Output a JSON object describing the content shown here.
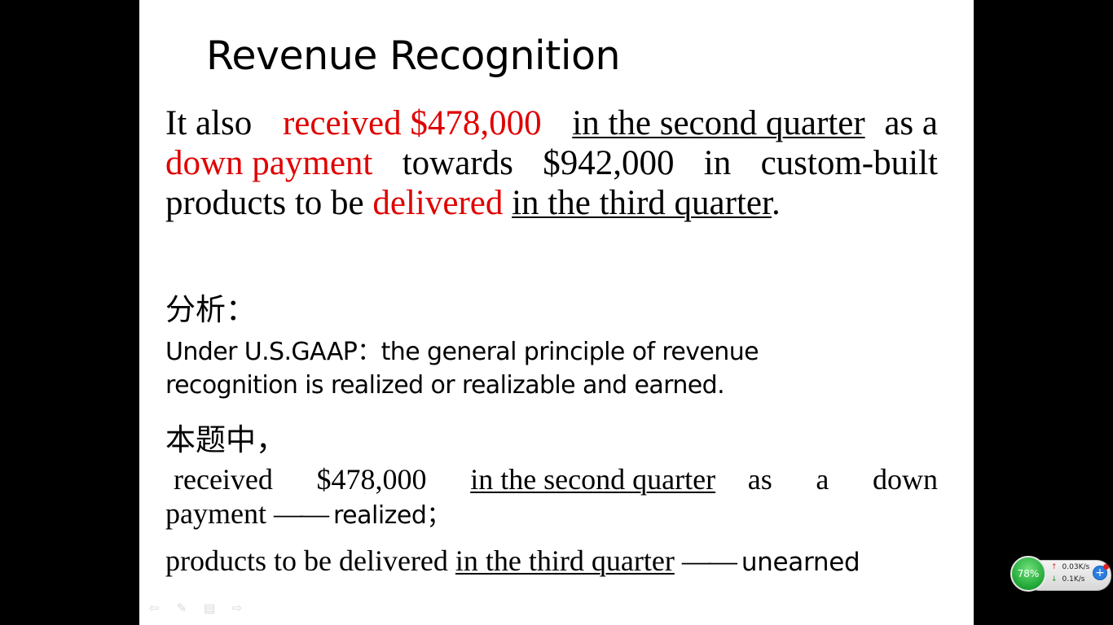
{
  "slide": {
    "title": "Revenue Recognition",
    "para1": {
      "l1_a": "It also",
      "l1_b": "received $478,000",
      "l1_c": "in the second quarter ",
      "l1_d": "as a",
      "l2_a": "down payment",
      "l2_b": "towards",
      "l2_c": "$942,000",
      "l2_d": "in",
      "l2_e": "custom-built",
      "l3_a": "products to be",
      "l3_b": "delivered",
      "l3_c": "in the third quarter",
      "l3_d": "."
    },
    "analysis_heading": "分析：",
    "para2": {
      "l1": "Under U.S.GAAP：the general principle of revenue",
      "l2": "recognition is realized or realizable and earned."
    },
    "question_heading": "本题中，",
    "para3": {
      "w1": "received",
      "w2": "$478,000",
      "w3": "in the second quarter ",
      "w4": "as",
      "w5": "a",
      "w6": "down",
      "l2_a": "payment",
      "l2_dash": "——",
      "l2_b": "realized；"
    },
    "para4": {
      "a": "products to be delivered",
      "b": "in the third quarter",
      "dash": "——",
      "c": "unearned"
    },
    "nav": {
      "prev_icon": "⇦",
      "pen_icon": "✎",
      "menu_icon": "▤",
      "next_icon": "⇨"
    }
  },
  "widget": {
    "battery_percent": "78%",
    "upload_speed": "0.03K/s",
    "download_speed": "0.1K/s",
    "up_arrow": "↑",
    "down_arrow": "↓",
    "plus": "+"
  },
  "colors": {
    "accent_red": "#e00000",
    "widget_green": "#1fa635",
    "widget_blue": "#2b7de0"
  }
}
